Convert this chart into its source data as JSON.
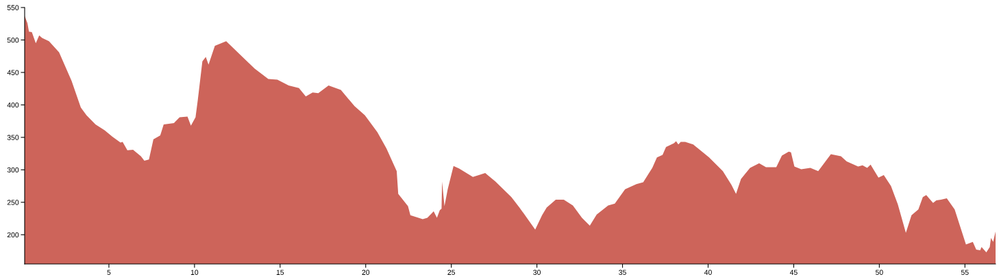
{
  "chart_data": {
    "type": "area",
    "xlim": [
      0.08,
      56.79
    ],
    "ylim": [
      155,
      550
    ],
    "xticks": [
      5,
      10,
      15,
      20,
      25,
      30,
      35,
      40,
      45,
      50,
      55
    ],
    "yticks": [
      200,
      250,
      300,
      350,
      400,
      450,
      500,
      550
    ],
    "grid": false,
    "legend": false,
    "series": [
      {
        "color": "#cd645a",
        "x": [
          0.08,
          0.24,
          0.33,
          0.5,
          0.73,
          0.93,
          1.1,
          1.5,
          2.09,
          2.82,
          3.36,
          3.69,
          4.22,
          4.75,
          5.21,
          5.68,
          5.8,
          6.08,
          6.41,
          6.87,
          7.07,
          7.34,
          7.6,
          8.0,
          8.2,
          8.8,
          9.13,
          9.59,
          9.79,
          10.06,
          10.19,
          10.46,
          10.66,
          10.82,
          11.19,
          11.85,
          12.72,
          13.51,
          14.31,
          14.84,
          15.5,
          16.1,
          16.5,
          16.9,
          17.23,
          17.83,
          18.55,
          19.35,
          19.95,
          20.68,
          21.21,
          21.81,
          21.9,
          22.47,
          22.61,
          23.33,
          23.6,
          23.97,
          24.16,
          24.33,
          24.43,
          24.46,
          24.6,
          24.79,
          25.13,
          25.46,
          26.26,
          26.98,
          27.58,
          28.51,
          28.98,
          29.9,
          30.3,
          30.57,
          31.1,
          31.57,
          32.1,
          32.63,
          33.09,
          33.49,
          34.16,
          34.55,
          35.15,
          35.81,
          36.21,
          36.74,
          37.01,
          37.34,
          37.54,
          38.0,
          38.13,
          38.26,
          38.4,
          38.66,
          39.13,
          40.06,
          40.86,
          41.36,
          41.63,
          41.92,
          42.45,
          42.98,
          43.38,
          43.98,
          44.31,
          44.71,
          44.84,
          45.04,
          45.44,
          45.97,
          46.43,
          47.17,
          47.76,
          48.09,
          48.76,
          49.02,
          49.29,
          49.49,
          49.95,
          50.26,
          50.68,
          51.08,
          51.55,
          51.88,
          52.28,
          52.54,
          52.74,
          53.14,
          53.33,
          53.6,
          53.94,
          54.4,
          55.06,
          55.46,
          55.66,
          55.89,
          55.97,
          56.25,
          56.45,
          56.52,
          56.65,
          56.79
        ],
        "values": [
          537,
          526,
          513,
          512,
          495,
          507,
          503,
          498,
          481,
          437,
          396,
          384,
          370,
          361,
          351,
          342,
          343,
          330,
          331,
          321,
          314,
          316,
          347,
          353,
          370,
          372,
          381,
          382,
          368,
          381,
          407,
          467,
          474,
          462,
          491,
          498,
          476,
          456,
          440,
          439,
          430,
          426,
          413,
          419,
          418,
          430,
          423,
          398,
          384,
          358,
          333,
          298,
          263,
          244,
          230,
          224,
          226,
          236,
          226,
          238,
          240,
          282,
          244,
          270,
          306,
          302,
          289,
          295,
          282,
          258,
          242,
          208,
          230,
          242,
          254,
          254,
          245,
          226,
          214,
          231,
          245,
          248,
          270,
          278,
          281,
          303,
          319,
          323,
          335,
          341,
          344,
          339,
          343,
          343,
          339,
          319,
          298,
          277,
          263,
          286,
          303,
          310,
          304,
          304,
          322,
          328,
          327,
          305,
          301,
          303,
          298,
          324,
          321,
          313,
          305,
          307,
          303,
          308,
          288,
          292,
          275,
          247,
          203,
          230,
          239,
          258,
          261,
          249,
          253,
          254,
          256,
          239,
          185,
          189,
          177,
          176,
          181,
          173,
          181,
          195,
          189,
          205
        ]
      }
    ]
  }
}
